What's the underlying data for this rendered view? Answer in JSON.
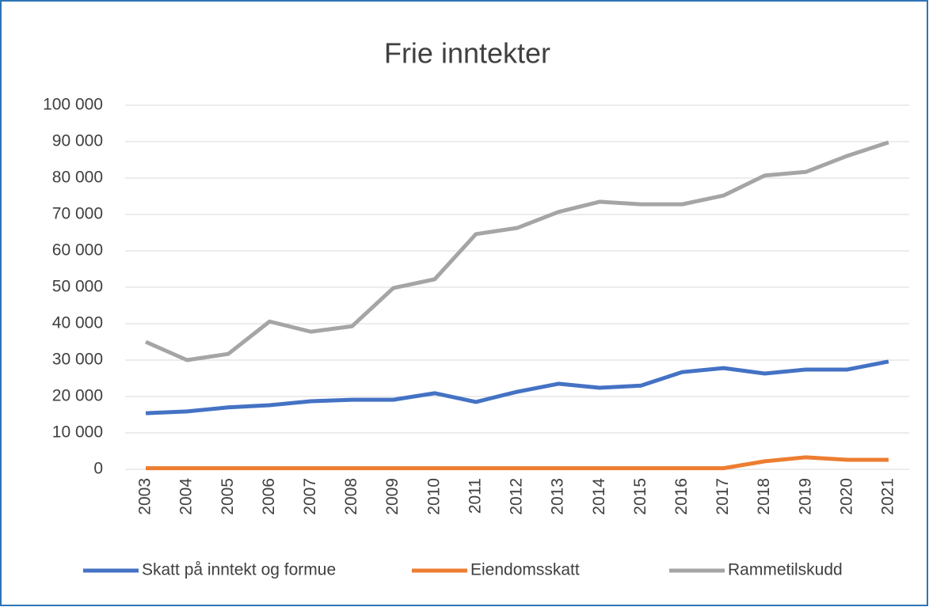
{
  "chart_data": {
    "type": "line",
    "title": "Frie inntekter",
    "categories": [
      "2003",
      "2004",
      "2005",
      "2006",
      "2007",
      "2008",
      "2009",
      "2010",
      "2011",
      "2012",
      "2013",
      "2014",
      "2015",
      "2016",
      "2017",
      "2018",
      "2019",
      "2020",
      "2021"
    ],
    "series": [
      {
        "name": "Skatt på inntekt og formue",
        "color": "#4472c4",
        "values": [
          15400,
          15900,
          17000,
          17600,
          18700,
          19100,
          19100,
          20900,
          18500,
          21300,
          23500,
          22400,
          23000,
          26700,
          27800,
          26300,
          27400,
          27400,
          29600
        ]
      },
      {
        "name": "Eiendomsskatt",
        "color": "#ed7d31",
        "values": [
          300,
          300,
          300,
          300,
          300,
          300,
          300,
          300,
          300,
          300,
          300,
          300,
          300,
          300,
          300,
          2200,
          3300,
          2600,
          2600
        ]
      },
      {
        "name": "Rammetilskudd",
        "color": "#a5a5a5",
        "values": [
          35000,
          30000,
          31700,
          40600,
          37800,
          39300,
          49800,
          52200,
          64600,
          66300,
          70700,
          73500,
          72800,
          72800,
          75200,
          80700,
          81700,
          86100,
          89800
        ]
      }
    ],
    "ylim": [
      0,
      100000
    ],
    "yticks": [
      0,
      {
        "value": 10000,
        "label": "10 000"
      },
      {
        "value": 20000,
        "label": "20 000"
      },
      {
        "value": 30000,
        "label": "30 000"
      },
      {
        "value": 40000,
        "label": "40 000"
      },
      {
        "value": 50000,
        "label": "50 000"
      },
      {
        "value": 60000,
        "label": "60 000"
      },
      {
        "value": 70000,
        "label": "70 000"
      },
      {
        "value": 80000,
        "label": "80 000"
      },
      {
        "value": 90000,
        "label": "90 000"
      },
      {
        "value": 100000,
        "label": "100 000"
      }
    ],
    "grid": true,
    "legend": "bottom"
  }
}
